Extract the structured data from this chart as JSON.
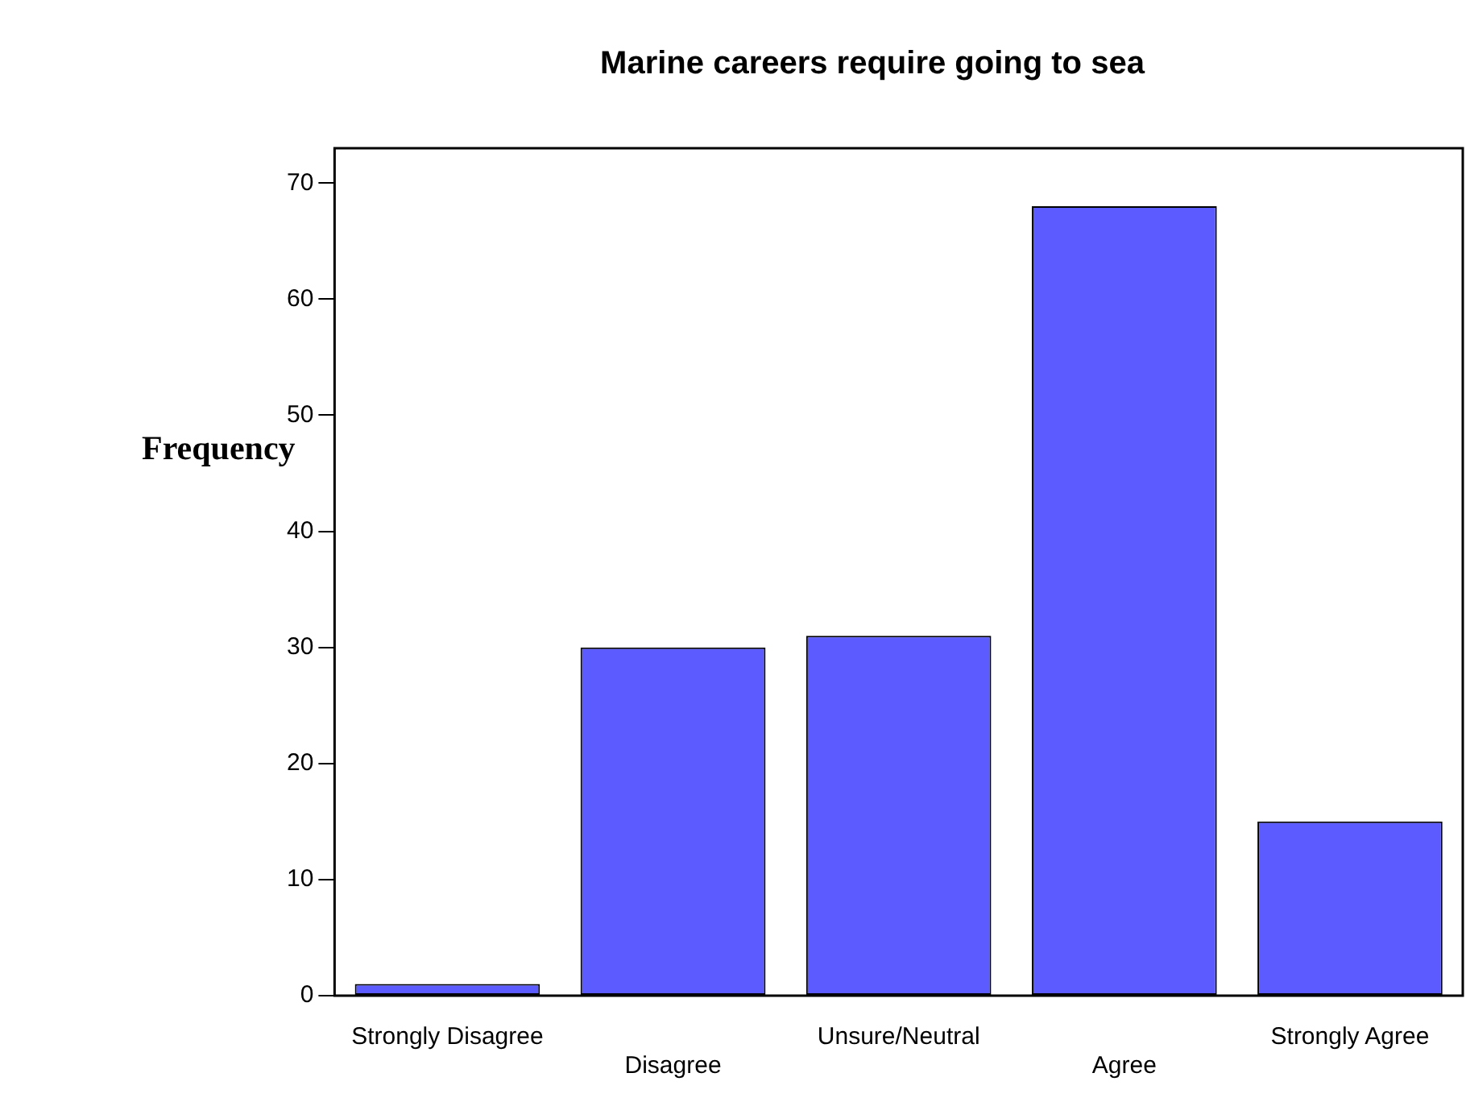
{
  "chart_data": {
    "type": "bar",
    "title": "Marine careers require going to sea",
    "ylabel": "Frequency",
    "categories": [
      "Strongly Disagree",
      "Disagree",
      "Unsure/Neutral",
      "Agree",
      "Strongly Agree"
    ],
    "values": [
      1,
      30,
      31,
      68,
      15
    ],
    "color": "#5b5bff",
    "ylim": [
      0,
      73
    ],
    "yticks": [
      0,
      10,
      20,
      30,
      40,
      50,
      60,
      70
    ],
    "grid": false,
    "legend": false
  }
}
